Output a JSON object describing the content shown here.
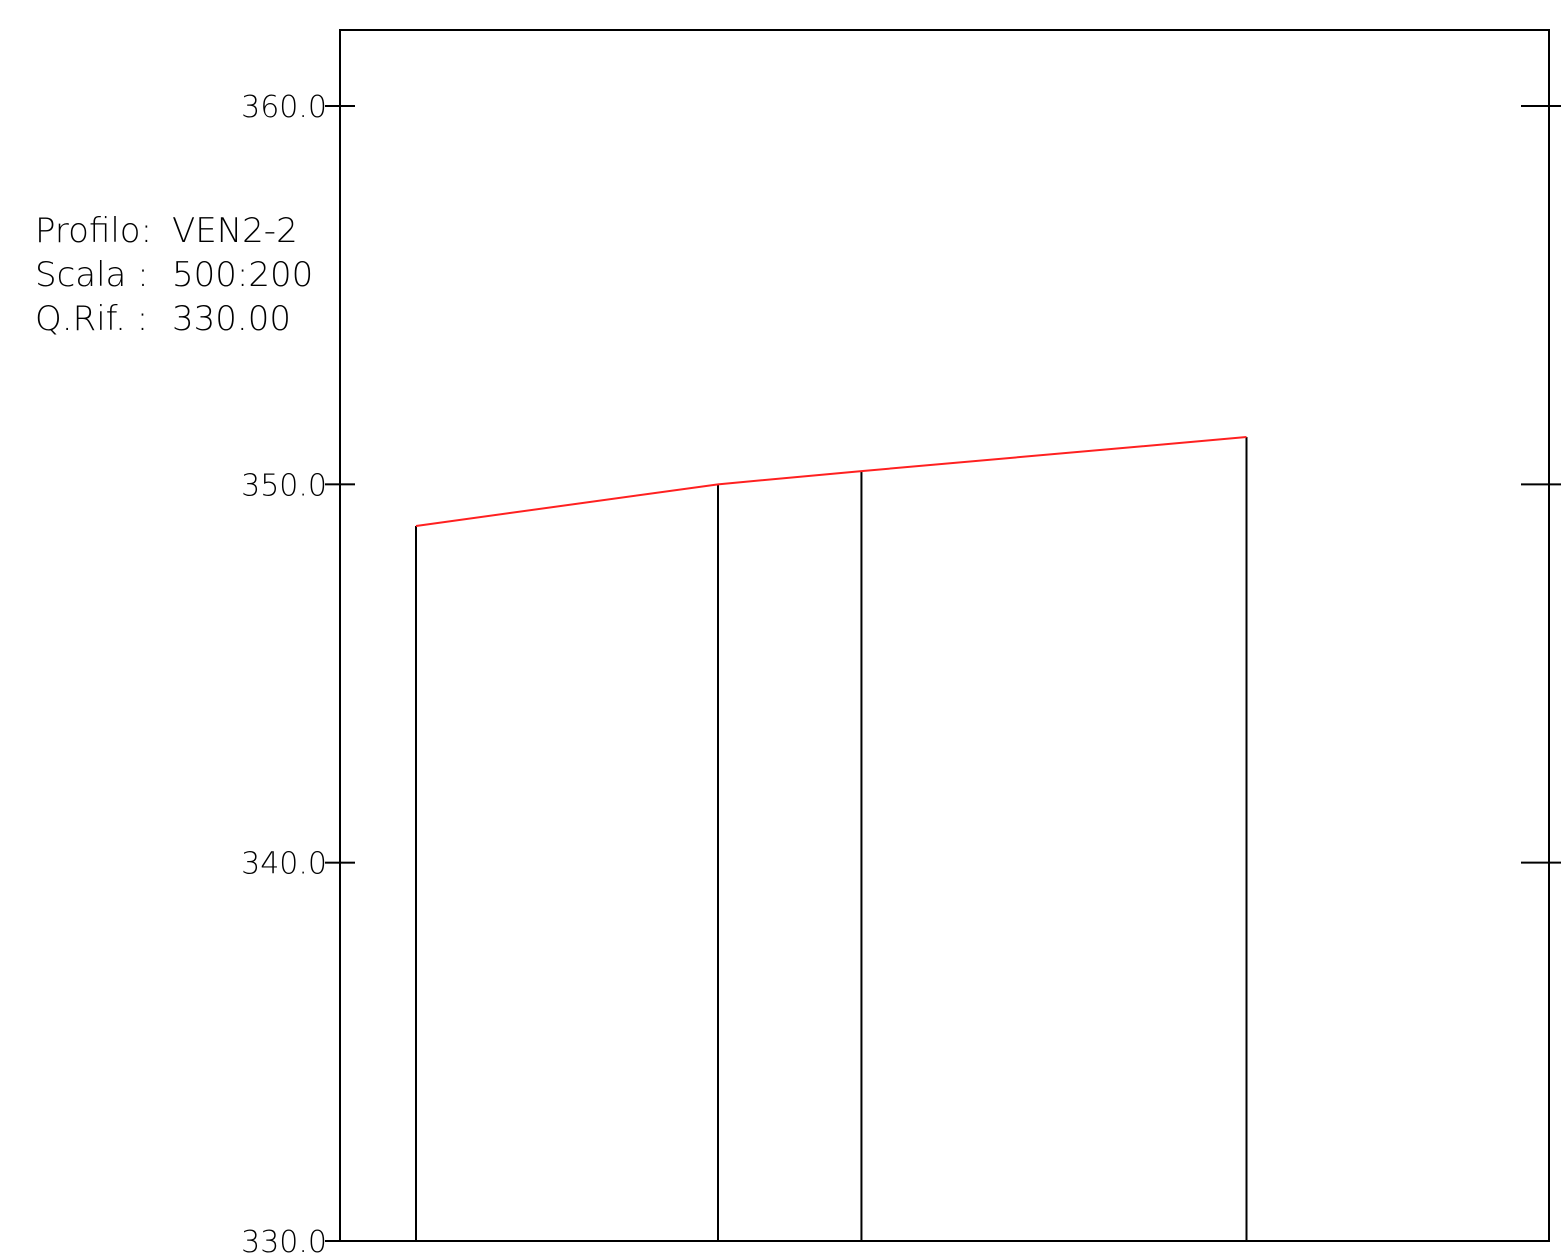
{
  "header": {
    "profilo_label": "Profilo:",
    "profilo_value": "VEN2-2",
    "scala_label": "Scala :",
    "scala_value": "500:200",
    "qrif_label": "Q.Rif. :",
    "qrif_value": "330.00"
  },
  "colors": {
    "terrain_line": "#ff2020",
    "frame": "#000000"
  },
  "chart_data": {
    "type": "line",
    "title": "",
    "xlabel": "",
    "ylabel": "",
    "ylim": [
      330,
      362
    ],
    "yticks": [
      330,
      340,
      350,
      360
    ],
    "ytick_labels": [
      "330.0",
      "340.0",
      "350.0",
      "360.0"
    ],
    "grid": false,
    "series": [
      {
        "color": "#ff2020",
        "x": [
          0,
          40,
          59,
          110
        ],
        "y": [
          348.9,
          350.0,
          350.35,
          351.25
        ]
      }
    ],
    "stations": [
      {
        "x": 0,
        "y": 348.9
      },
      {
        "x": 40,
        "y": 350.0
      },
      {
        "x": 59,
        "y": 350.35
      },
      {
        "x": 110,
        "y": 351.25
      }
    ]
  }
}
